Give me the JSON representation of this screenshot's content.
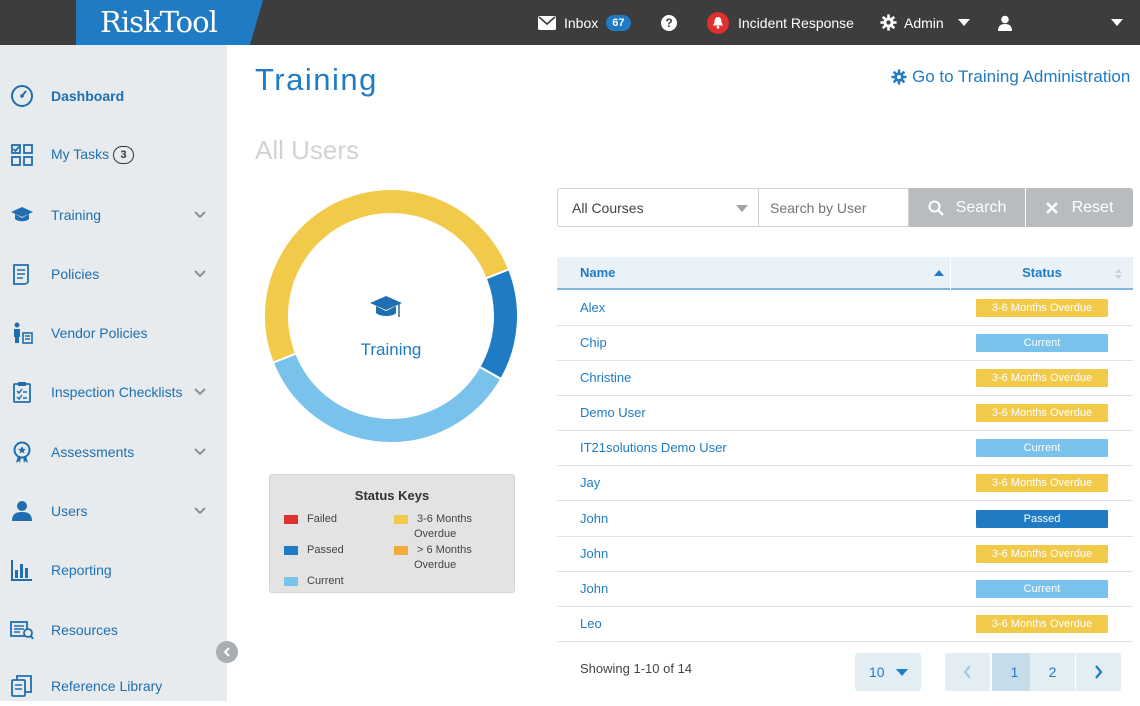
{
  "app": {
    "logo": "RiskTool"
  },
  "topbar": {
    "inbox_label": "Inbox",
    "inbox_count": "67",
    "help_symbol": "?",
    "incident_label": "Incident Response",
    "admin_label": "Admin"
  },
  "sidebar": {
    "items": [
      {
        "label": "Dashboard",
        "icon": "dashboard-gauge-icon",
        "expandable": false,
        "active": true
      },
      {
        "label": "My Tasks",
        "icon": "tasks-icon",
        "expandable": false,
        "count": "3"
      },
      {
        "label": "Training",
        "icon": "graduation-cap-icon",
        "expandable": true
      },
      {
        "label": "Policies",
        "icon": "policy-document-icon",
        "expandable": true
      },
      {
        "label": "Vendor Policies",
        "icon": "vendor-icon",
        "expandable": false
      },
      {
        "label": "Inspection Checklists",
        "icon": "clipboard-icon",
        "expandable": true
      },
      {
        "label": "Assessments",
        "icon": "award-icon",
        "expandable": true
      },
      {
        "label": "Users",
        "icon": "user-icon",
        "expandable": true
      },
      {
        "label": "Reporting",
        "icon": "bar-chart-icon",
        "expandable": false
      },
      {
        "label": "Resources",
        "icon": "resources-icon",
        "expandable": false
      },
      {
        "label": "Reference Library",
        "icon": "library-icon",
        "expandable": false
      }
    ]
  },
  "main": {
    "title": "Training",
    "admin_link": "Go to Training Administration",
    "subtitle": "All Users",
    "donut_label": "Training"
  },
  "chart_data": {
    "type": "pie",
    "categories": [
      "3-6 Months Overdue",
      "Passed",
      "Current"
    ],
    "values": [
      7,
      2,
      5
    ],
    "colors": [
      "#f2ca4a",
      "#1f7bc4",
      "#79c2ec"
    ],
    "title": ""
  },
  "legend": {
    "title": "Status Keys",
    "items": [
      {
        "label": "Failed",
        "color": "#e02f2f"
      },
      {
        "label": "Passed",
        "color": "#1f7bc4"
      },
      {
        "label": "Current",
        "color": "#79c2ec"
      },
      {
        "label": "3-6 Months Overdue",
        "color": "#f2ca4a"
      },
      {
        "label": "> 6 Months Overdue",
        "color": "#f4a93b"
      }
    ]
  },
  "filters": {
    "course_selected": "All Courses",
    "search_placeholder": "Search by User",
    "search_label": "Search",
    "reset_label": "Reset"
  },
  "table": {
    "headers": {
      "name": "Name",
      "status": "Status"
    },
    "rows": [
      {
        "name": "Alex",
        "status": "3-6 Months Overdue"
      },
      {
        "name": "Chip",
        "status": "Current"
      },
      {
        "name": "Christine",
        "status": "3-6 Months Overdue"
      },
      {
        "name": "Demo User",
        "status": "3-6 Months Overdue"
      },
      {
        "name": "IT21solutions Demo User",
        "status": "Current"
      },
      {
        "name": "Jay",
        "status": "3-6 Months Overdue"
      },
      {
        "name": "John",
        "status": "Passed"
      },
      {
        "name": "John",
        "status": "3-6 Months Overdue"
      },
      {
        "name": "John",
        "status": "Current"
      },
      {
        "name": "Leo",
        "status": "3-6 Months Overdue"
      }
    ]
  },
  "status_colors": {
    "3-6 Months Overdue": "#f2ca4a",
    "Current": "#79c2ec",
    "Passed": "#1f7bc4"
  },
  "pagination": {
    "showing": "Showing 1-10 of 14",
    "per_page": "10",
    "pages": [
      "1",
      "2"
    ],
    "current_page": "1"
  }
}
